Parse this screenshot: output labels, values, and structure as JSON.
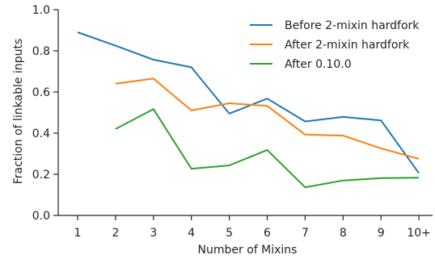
{
  "chart_data": {
    "type": "line",
    "title": "",
    "xlabel": "Number of Mixins",
    "ylabel": "Fraction of linkable inputs",
    "categories": [
      "1",
      "2",
      "3",
      "4",
      "5",
      "6",
      "7",
      "8",
      "9",
      "10+"
    ],
    "ylim": [
      0,
      1.0
    ],
    "yticks": [
      "0.0",
      "0.2",
      "0.4",
      "0.6",
      "0.8",
      "1.0"
    ],
    "grid": false,
    "legend_position": "top-right",
    "series": [
      {
        "name": "Before 2-mixin hardfork",
        "color": "#1f77b4",
        "values": [
          0.89,
          0.825,
          0.757,
          0.72,
          0.495,
          0.568,
          0.457,
          0.479,
          0.462,
          0.205
        ]
      },
      {
        "name": "After 2-mixin hardfork",
        "color": "#ff7f0e",
        "values": [
          null,
          0.64,
          0.665,
          0.51,
          0.545,
          0.532,
          0.393,
          0.388,
          0.326,
          0.275
        ]
      },
      {
        "name": "After 0.10.0",
        "color": "#2ca02c",
        "values": [
          null,
          0.42,
          0.517,
          0.227,
          0.243,
          0.318,
          0.137,
          0.17,
          0.181,
          0.183
        ]
      }
    ]
  }
}
